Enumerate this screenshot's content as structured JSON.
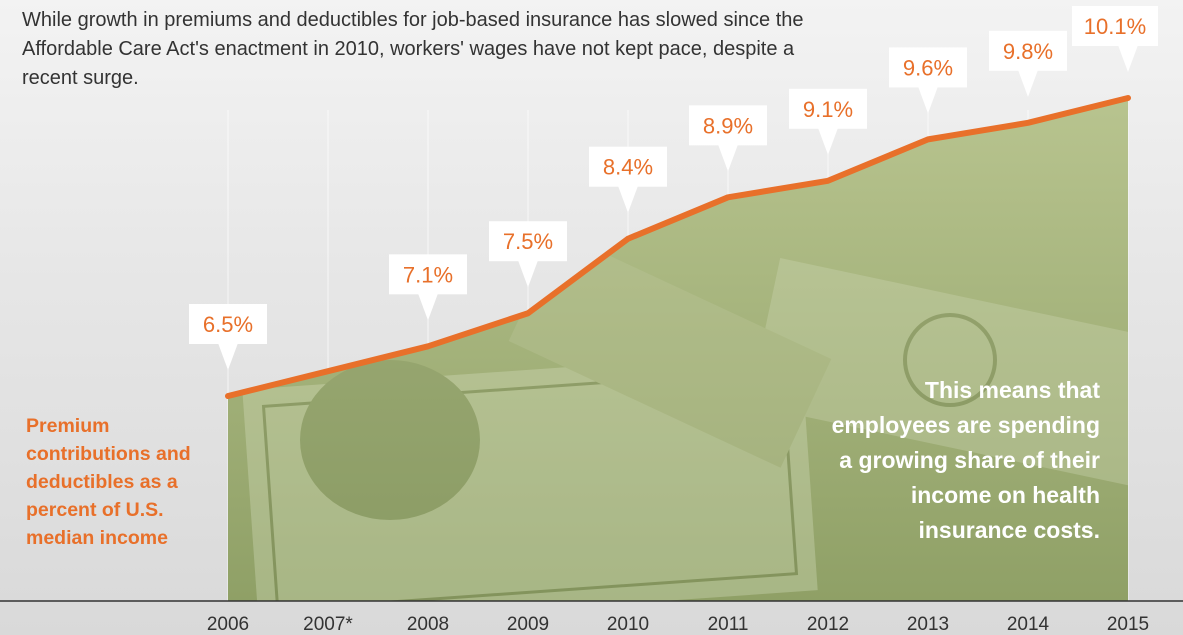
{
  "intro_text": "While growth in premiums and deductibles for job-based insurance has slowed since the Affordable Care Act's enactment in 2010, workers' wages have not kept pace, despite a recent surge.",
  "side_label": "Premium contributions and deductibles as a percent of U.S. median income",
  "note_text": "This means that employees are spending a growing share of their income on health insurance costs.",
  "colors": {
    "line": "#e8702a",
    "area": "#a8b67e",
    "label_text": "#e8702a",
    "gridline": "#ffffff"
  },
  "chart_data": {
    "type": "area",
    "x": [
      "2006",
      "2007*",
      "2008",
      "2009",
      "2010",
      "2011",
      "2012",
      "2013",
      "2014",
      "2015"
    ],
    "values": [
      6.5,
      6.8,
      7.1,
      7.5,
      8.4,
      8.9,
      9.1,
      9.6,
      9.8,
      10.1
    ],
    "data_labels": [
      "6.5%",
      "",
      "7.1%",
      "7.5%",
      "8.4%",
      "8.9%",
      "9.1%",
      "9.6%",
      "9.8%",
      "10.1%"
    ],
    "grid": true,
    "background": "photo of U.S. dollar bills tinted green inside the area"
  }
}
